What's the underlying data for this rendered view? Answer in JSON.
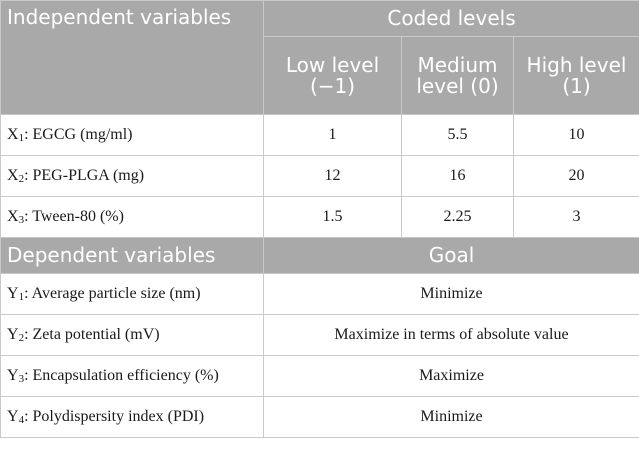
{
  "header": {
    "independent_variables": "Independent variables",
    "coded_levels": "Coded levels",
    "low_level": "Low level (−1)",
    "medium_level": "Medium level (0)",
    "high_level": "High level (1)"
  },
  "independent_rows": [
    {
      "sym": "X",
      "sub": "1",
      "name": ": EGCG (mg/ml)",
      "low": "1",
      "medium": "5.5",
      "high": "10"
    },
    {
      "sym": "X",
      "sub": "2",
      "name": ": PEG-PLGA (mg)",
      "low": "12",
      "medium": "16",
      "high": "20"
    },
    {
      "sym": "X",
      "sub": "3",
      "name": ": Tween-80 (%)",
      "low": "1.5",
      "medium": "2.25",
      "high": "3"
    }
  ],
  "dependent_header": {
    "dependent_variables": "Dependent variables",
    "goal": "Goal"
  },
  "dependent_rows": [
    {
      "sym": "Y",
      "sub": "1",
      "name": ": Average particle size (nm)",
      "goal": "Minimize"
    },
    {
      "sym": "Y",
      "sub": "2",
      "name": ": Zeta potential (mV)",
      "goal": "Maximize in terms of absolute value"
    },
    {
      "sym": "Y",
      "sub": "3",
      "name": ": Encapsulation efficiency (%)",
      "goal": "Maximize"
    },
    {
      "sym": "Y",
      "sub": "4",
      "name": ": Polydispersity index (PDI)",
      "goal": "Minimize"
    }
  ]
}
